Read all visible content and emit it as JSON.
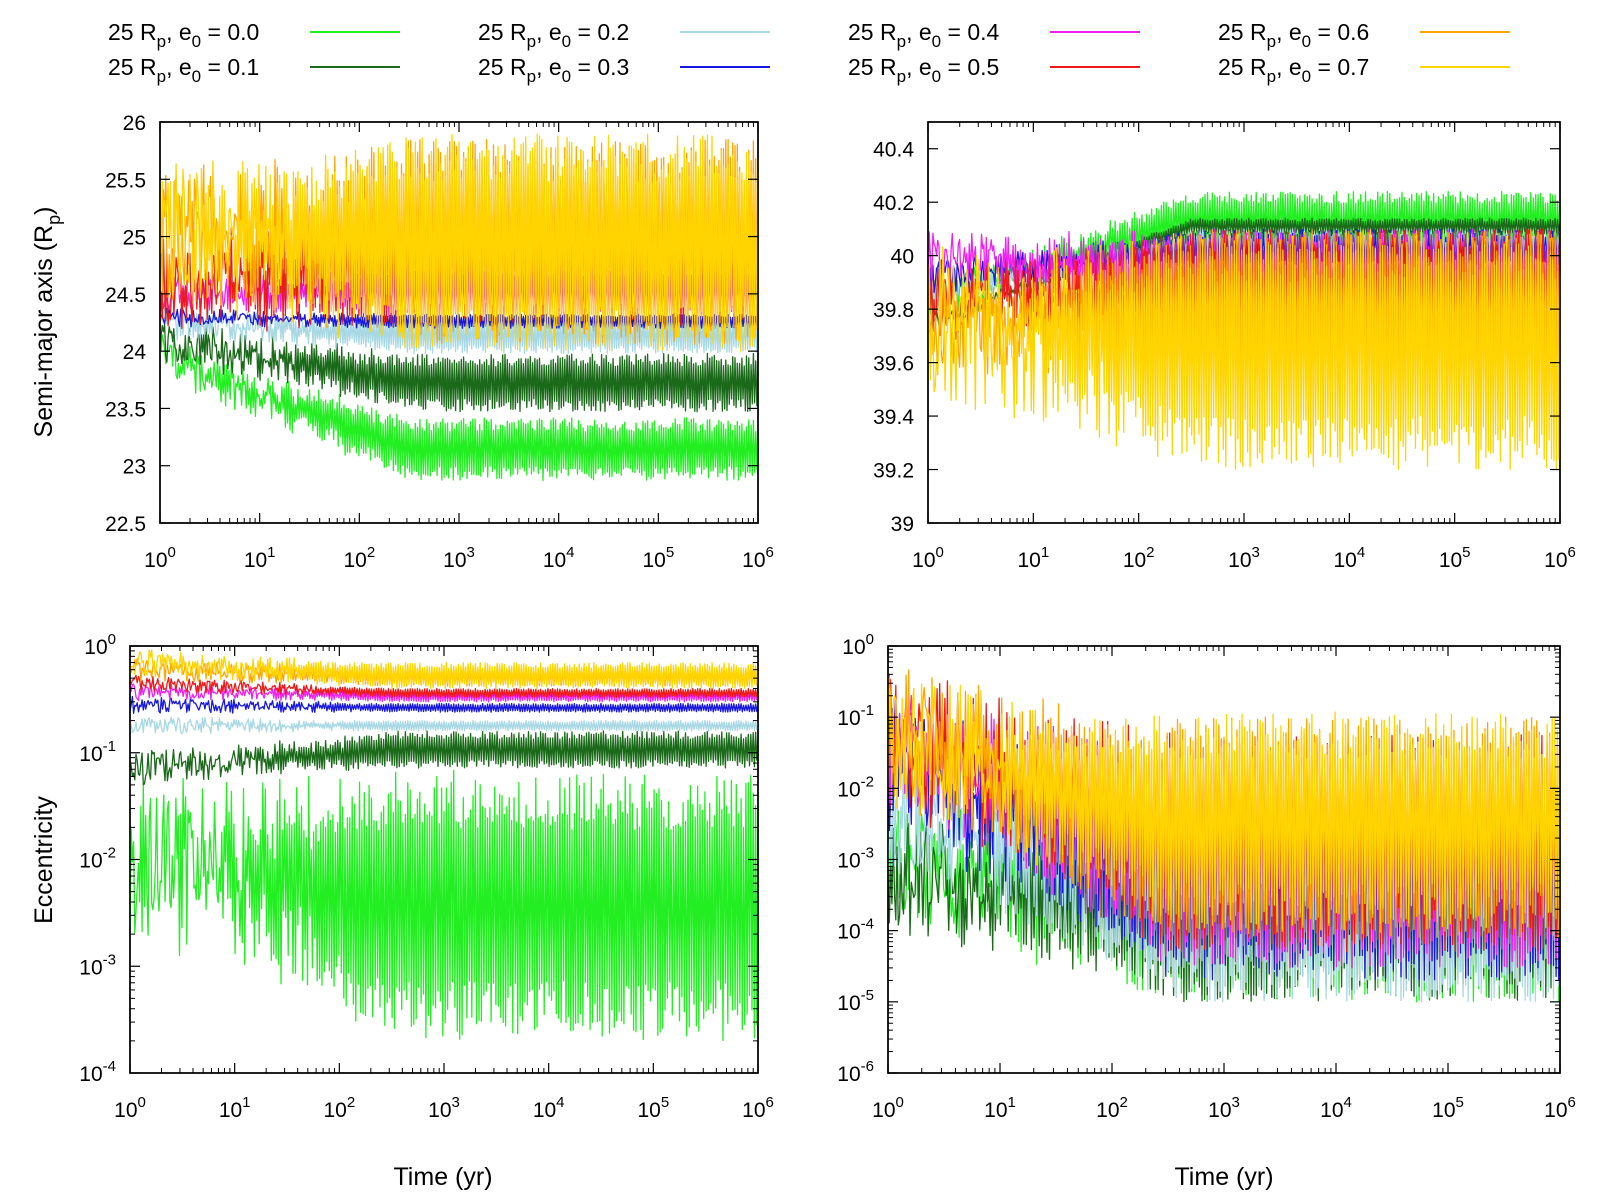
{
  "legend": {
    "entries": [
      {
        "label": "25 R",
        "sub": "p",
        "mid": ", e",
        "sub2": "0",
        "tail": " = 0.0",
        "color": "#22ee22"
      },
      {
        "label": "25 R",
        "sub": "p",
        "mid": ", e",
        "sub2": "0",
        "tail": " = 0.1",
        "color": "#1a6a1a"
      },
      {
        "label": "25 R",
        "sub": "p",
        "mid": ", e",
        "sub2": "0",
        "tail": " = 0.2",
        "color": "#a8d8e4"
      },
      {
        "label": "25 R",
        "sub": "p",
        "mid": ", e",
        "sub2": "0",
        "tail": " = 0.3",
        "color": "#1818e0"
      },
      {
        "label": "25 R",
        "sub": "p",
        "mid": ", e",
        "sub2": "0",
        "tail": " = 0.4",
        "color": "#ee22ee"
      },
      {
        "label": "25 R",
        "sub": "p",
        "mid": ", e",
        "sub2": "0",
        "tail": " = 0.5",
        "color": "#ee1a1a"
      },
      {
        "label": "25 R",
        "sub": "p",
        "mid": ", e",
        "sub2": "0",
        "tail": " = 0.6",
        "color": "#ffa500"
      },
      {
        "label": "25 R",
        "sub": "p",
        "mid": ", e",
        "sub2": "0",
        "tail": " = 0.7",
        "color": "#ffd400"
      }
    ]
  },
  "chart_data": [
    {
      "id": "top-left",
      "type": "line",
      "xscale": "log",
      "xlim": [
        1,
        1000000
      ],
      "xticks": [
        "0",
        "1",
        "2",
        "3",
        "4",
        "5",
        "6"
      ],
      "xtick_base": "10",
      "ylabel_main": "Semi-major axis (R",
      "ylabel_sub": "p",
      "ylabel_end": ")",
      "ylim": [
        22.5,
        26
      ],
      "yticks": [
        "22.5",
        "23",
        "23.5",
        "24",
        "24.5",
        "25",
        "25.5",
        "26"
      ],
      "series": [
        {
          "name": "e0 = 0.0",
          "start": 23.95,
          "band": [
            22.87,
            23.42
          ]
        },
        {
          "name": "e0 = 0.1",
          "start": 24.1,
          "band": [
            23.47,
            23.98
          ]
        },
        {
          "name": "e0 = 0.2",
          "start": 24.25,
          "band": [
            23.98,
            24.3
          ]
        },
        {
          "name": "e0 = 0.3",
          "start": 24.3,
          "band": [
            24.2,
            24.32
          ]
        },
        {
          "name": "e0 = 0.4",
          "start": 24.5,
          "band": [
            24.3,
            24.75
          ]
        },
        {
          "name": "e0 = 0.5",
          "start": 24.55,
          "band": [
            24.2,
            25.5
          ]
        },
        {
          "name": "e0 = 0.6",
          "start": 25.05,
          "band": [
            24.05,
            25.85
          ]
        },
        {
          "name": "e0 = 0.7",
          "start": 25.0,
          "band": [
            24.0,
            25.9
          ]
        }
      ]
    },
    {
      "id": "top-right",
      "type": "line",
      "xscale": "log",
      "xlim": [
        1,
        1000000
      ],
      "xticks": [
        "0",
        "1",
        "2",
        "3",
        "4",
        "5",
        "6"
      ],
      "xtick_base": "10",
      "ylim": [
        39,
        40.5
      ],
      "yticks": [
        "39",
        "39.2",
        "39.4",
        "39.6",
        "39.8",
        "40",
        "40.2",
        "40.4"
      ],
      "series": [
        {
          "name": "e0 = 0.0",
          "start": 39.83,
          "band": [
            40.04,
            40.24
          ]
        },
        {
          "name": "e0 = 0.1",
          "start": 39.75,
          "band": [
            40.08,
            40.14
          ]
        },
        {
          "name": "e0 = 0.2",
          "start": 39.85,
          "band": [
            40.0,
            40.1
          ]
        },
        {
          "name": "e0 = 0.3",
          "start": 39.92,
          "band": [
            39.95,
            40.1
          ]
        },
        {
          "name": "e0 = 0.4",
          "start": 39.98,
          "band": [
            39.8,
            40.1
          ]
        },
        {
          "name": "e0 = 0.5",
          "start": 39.82,
          "band": [
            39.7,
            40.1
          ]
        },
        {
          "name": "e0 = 0.6",
          "start": 39.72,
          "band": [
            39.5,
            40.1
          ]
        },
        {
          "name": "e0 = 0.7",
          "start": 39.75,
          "band": [
            39.2,
            40.1
          ]
        }
      ]
    },
    {
      "id": "bottom-left",
      "type": "line",
      "xscale": "log",
      "xlim": [
        1,
        1000000
      ],
      "xticks": [
        "0",
        "1",
        "2",
        "3",
        "4",
        "5",
        "6"
      ],
      "xtick_base": "10",
      "xlabel": "Time (yr)",
      "ylabel": "Eccentricity",
      "yscale": "log",
      "ylim": [
        0.0001,
        1
      ],
      "yticks": [
        "-4",
        "-3",
        "-2",
        "-1",
        "0"
      ],
      "ytick_base": "10",
      "series": [
        {
          "name": "e0 = 0.0",
          "start": 0.012,
          "band": [
            0.0002,
            0.07
          ]
        },
        {
          "name": "e0 = 0.1",
          "start": 0.07,
          "band": [
            0.072,
            0.16
          ]
        },
        {
          "name": "e0 = 0.2",
          "start": 0.18,
          "band": [
            0.16,
            0.2
          ]
        },
        {
          "name": "e0 = 0.3",
          "start": 0.28,
          "band": [
            0.24,
            0.29
          ]
        },
        {
          "name": "e0 = 0.4",
          "start": 0.38,
          "band": [
            0.3,
            0.38
          ]
        },
        {
          "name": "e0 = 0.5",
          "start": 0.45,
          "band": [
            0.33,
            0.4
          ]
        },
        {
          "name": "e0 = 0.6",
          "start": 0.6,
          "band": [
            0.42,
            0.62
          ]
        },
        {
          "name": "e0 = 0.7",
          "start": 0.7,
          "band": [
            0.4,
            0.7
          ]
        }
      ]
    },
    {
      "id": "bottom-right",
      "type": "line",
      "xscale": "log",
      "xlim": [
        1,
        1000000
      ],
      "xticks": [
        "0",
        "1",
        "2",
        "3",
        "4",
        "5",
        "6"
      ],
      "xtick_base": "10",
      "xlabel": "Time (yr)",
      "yscale": "log",
      "ylim": [
        1e-06,
        1
      ],
      "yticks": [
        "-6",
        "-5",
        "-4",
        "-3",
        "-2",
        "-1",
        "0"
      ],
      "ytick_base": "10",
      "series": [
        {
          "name": "e0 = 0.0",
          "start": 0.0008,
          "band": [
            1e-05,
            0.005
          ]
        },
        {
          "name": "e0 = 0.1",
          "start": 0.0007,
          "band": [
            1e-05,
            0.004
          ]
        },
        {
          "name": "e0 = 0.2",
          "start": 0.006,
          "band": [
            1e-05,
            0.008
          ]
        },
        {
          "name": "e0 = 0.3",
          "start": 0.025,
          "band": [
            2e-05,
            0.02
          ]
        },
        {
          "name": "e0 = 0.4",
          "start": 0.045,
          "band": [
            3e-05,
            0.04
          ]
        },
        {
          "name": "e0 = 0.5",
          "start": 0.05,
          "band": [
            5e-05,
            0.06
          ]
        },
        {
          "name": "e0 = 0.6",
          "start": 0.06,
          "band": [
            8e-05,
            0.1
          ]
        },
        {
          "name": "e0 = 0.7",
          "start": 0.05,
          "band": [
            0.0001,
            0.12
          ]
        }
      ]
    }
  ]
}
